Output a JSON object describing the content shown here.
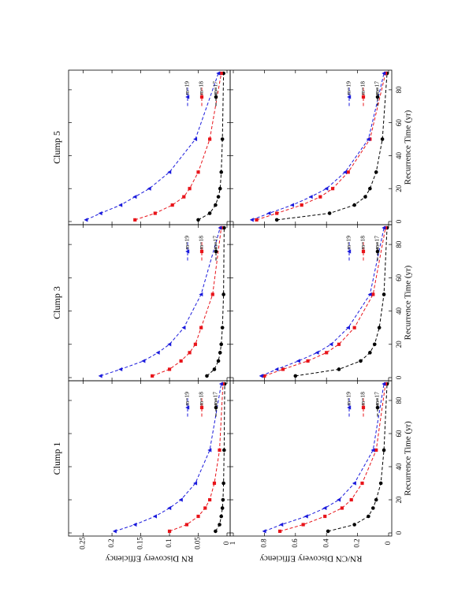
{
  "figure": {
    "orientation": "rotated 90 degrees counter-clockwise (landscape figure on portrait page)",
    "x_axis_label": "Recurrence Time (yr)",
    "x_ticks": [
      0,
      20,
      40,
      60,
      80
    ],
    "xlim": [
      0,
      90
    ],
    "rows": [
      {
        "ylabel": "RN Discovery Efficiency",
        "ylim": [
          0,
          0.27
        ],
        "y_ticks": [
          0,
          0.05,
          0.1,
          0.15,
          0.2,
          0.25
        ],
        "y_tick_labels": [
          "0",
          "0.05",
          "0.1",
          "0.15",
          "0.2",
          "0.25"
        ]
      },
      {
        "ylabel": "RN/CN Discovery Efficiency",
        "ylim": [
          0,
          1
        ],
        "y_ticks": [
          0,
          0.2,
          0.4,
          0.6,
          0.8,
          1
        ],
        "y_tick_labels": [
          "0",
          "0.2",
          "0.4",
          "0.6",
          "0.8",
          "1"
        ]
      }
    ],
    "columns": [
      "Clump 1",
      "Clump 3",
      "Clump 5"
    ],
    "legend_labels": [
      "m=17",
      "m=18",
      "m=19"
    ]
  },
  "colors": {
    "m17": "#000000",
    "m18": "#e8141a",
    "m19": "#1a1adc"
  },
  "chart_data": [
    {
      "panel": "Clump 1 / RN",
      "type": "line",
      "x": [
        1,
        5,
        10,
        15,
        20,
        30,
        50,
        90
      ],
      "series": [
        {
          "name": "m=17",
          "values": [
            0.02,
            0.013,
            0.01,
            0.008,
            0.007,
            0.006,
            0.005,
            0.004
          ]
        },
        {
          "name": "m=18",
          "values": [
            0.1,
            0.07,
            0.05,
            0.038,
            0.03,
            0.022,
            0.013,
            0.007
          ]
        },
        {
          "name": "m=19",
          "values": [
            0.195,
            0.16,
            0.125,
            0.1,
            0.08,
            0.055,
            0.03,
            0.01
          ]
        }
      ]
    },
    {
      "panel": "Clump 3 / RN",
      "type": "line",
      "x": [
        1,
        5,
        10,
        15,
        20,
        30,
        50,
        90
      ],
      "series": [
        {
          "name": "m=17",
          "values": [
            0.035,
            0.022,
            0.015,
            0.012,
            0.01,
            0.008,
            0.006,
            0.005
          ]
        },
        {
          "name": "m=18",
          "values": [
            0.13,
            0.1,
            0.08,
            0.065,
            0.055,
            0.045,
            0.025,
            0.01
          ]
        },
        {
          "name": "m=19",
          "values": [
            0.22,
            0.185,
            0.145,
            0.12,
            0.1,
            0.075,
            0.045,
            0.012
          ]
        }
      ]
    },
    {
      "panel": "Clump 5 / RN",
      "type": "line",
      "x": [
        1,
        5,
        10,
        15,
        20,
        30,
        50,
        90
      ],
      "series": [
        {
          "name": "m=17",
          "values": [
            0.05,
            0.03,
            0.02,
            0.015,
            0.012,
            0.01,
            0.008,
            0.006
          ]
        },
        {
          "name": "m=18",
          "values": [
            0.16,
            0.125,
            0.095,
            0.075,
            0.065,
            0.05,
            0.03,
            0.01
          ]
        },
        {
          "name": "m=19",
          "values": [
            0.245,
            0.22,
            0.185,
            0.16,
            0.135,
            0.1,
            0.055,
            0.015
          ]
        }
      ]
    },
    {
      "panel": "Clump 1 / RN-CN",
      "type": "line",
      "x": [
        1,
        5,
        10,
        15,
        20,
        30,
        50,
        90
      ],
      "series": [
        {
          "name": "m=17",
          "values": [
            0.39,
            0.22,
            0.13,
            0.1,
            0.08,
            0.05,
            0.03,
            0.01
          ]
        },
        {
          "name": "m=18",
          "values": [
            0.7,
            0.55,
            0.41,
            0.3,
            0.24,
            0.17,
            0.08,
            0.02
          ]
        },
        {
          "name": "m=19",
          "values": [
            0.8,
            0.69,
            0.53,
            0.41,
            0.32,
            0.22,
            0.1,
            0.03
          ]
        }
      ]
    },
    {
      "panel": "Clump 3 / RN-CN",
      "type": "line",
      "x": [
        1,
        5,
        10,
        15,
        20,
        30,
        50,
        90
      ],
      "series": [
        {
          "name": "m=17",
          "values": [
            0.6,
            0.32,
            0.18,
            0.12,
            0.09,
            0.06,
            0.03,
            0.01
          ]
        },
        {
          "name": "m=18",
          "values": [
            0.8,
            0.68,
            0.52,
            0.4,
            0.32,
            0.22,
            0.1,
            0.02
          ]
        },
        {
          "name": "m=19",
          "values": [
            0.82,
            0.72,
            0.58,
            0.46,
            0.37,
            0.26,
            0.12,
            0.03
          ]
        }
      ]
    },
    {
      "panel": "Clump 5 / RN-CN",
      "type": "line",
      "x": [
        1,
        5,
        10,
        15,
        20,
        30,
        50,
        90
      ],
      "series": [
        {
          "name": "m=17",
          "values": [
            0.72,
            0.38,
            0.22,
            0.15,
            0.12,
            0.08,
            0.04,
            0.01
          ]
        },
        {
          "name": "m=18",
          "values": [
            0.85,
            0.72,
            0.56,
            0.44,
            0.36,
            0.26,
            0.12,
            0.02
          ]
        },
        {
          "name": "m=19",
          "values": [
            0.88,
            0.77,
            0.62,
            0.5,
            0.4,
            0.28,
            0.13,
            0.03
          ]
        }
      ]
    }
  ]
}
